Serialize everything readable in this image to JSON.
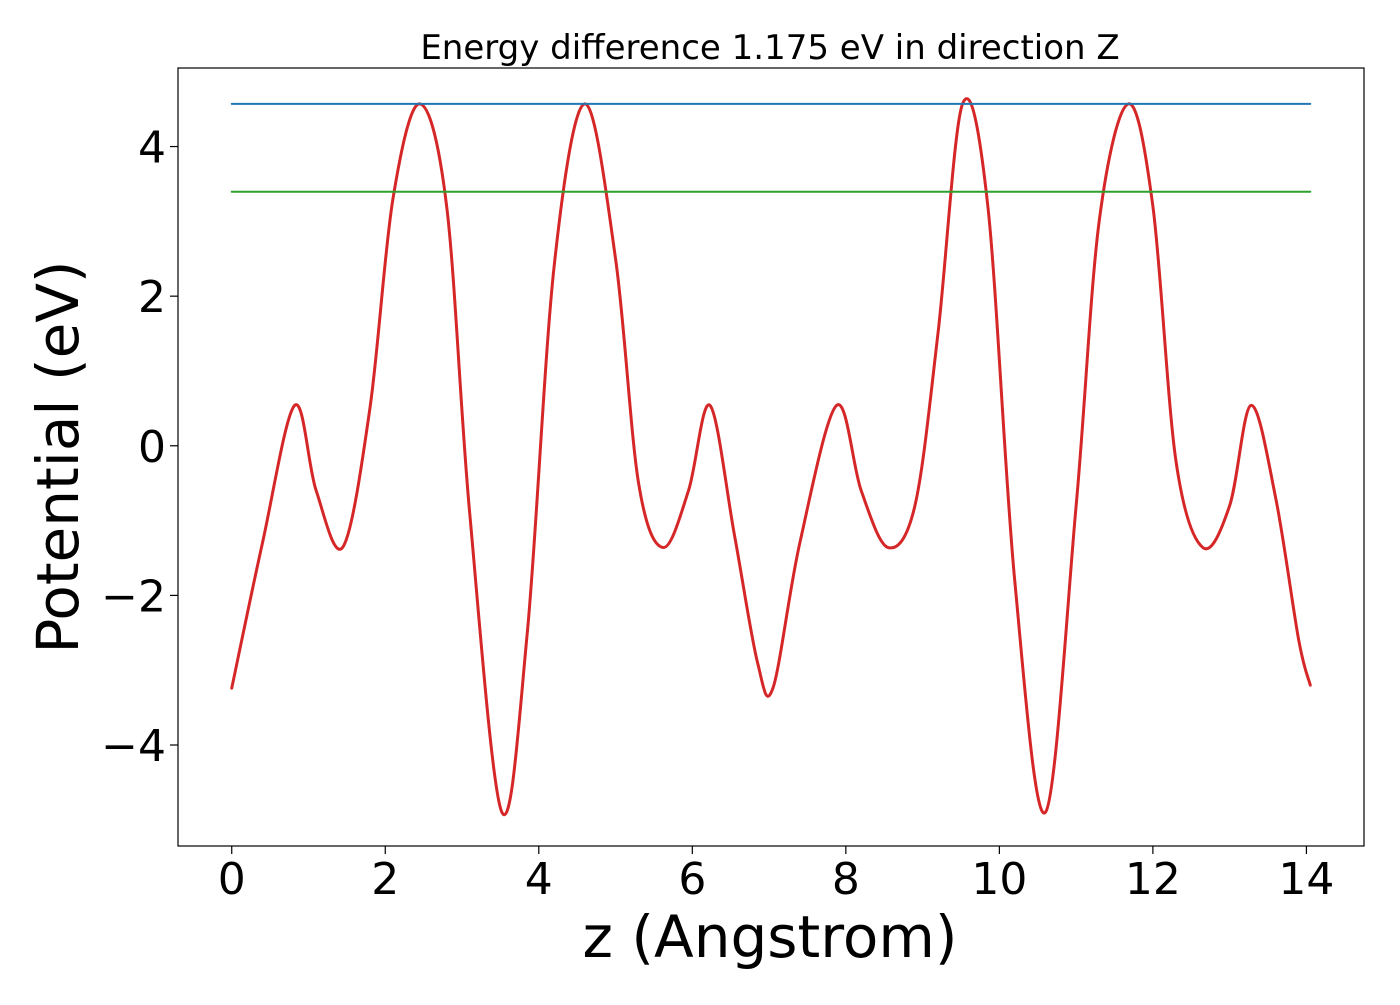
{
  "chart_data": {
    "type": "line",
    "title": "Energy difference 1.175 eV in direction Z",
    "xlabel": "z (Angstrom)",
    "ylabel": "Potential (eV)",
    "xlim": [
      -0.7,
      14.75
    ],
    "ylim": [
      -5.35,
      5.05
    ],
    "xticks": [
      0,
      2,
      4,
      6,
      8,
      10,
      12,
      14
    ],
    "xtick_labels": [
      "0",
      "2",
      "4",
      "6",
      "8",
      "10",
      "12",
      "14"
    ],
    "yticks": [
      -4,
      -2,
      0,
      2,
      4
    ],
    "ytick_labels": [
      "−4",
      "−2",
      "0",
      "2",
      "4"
    ],
    "grid": false,
    "legend": "none",
    "series": [
      {
        "color": "#d62728",
        "style": "line",
        "x": [
          0.0,
          0.4,
          0.82,
          1.1,
          1.45,
          1.8,
          2.1,
          2.45,
          2.8,
          3.1,
          3.52,
          3.85,
          4.2,
          4.6,
          5.0,
          5.3,
          5.62,
          5.95,
          6.23,
          6.55,
          6.85,
          7.05,
          7.4,
          7.88,
          8.2,
          8.55,
          8.9,
          9.2,
          9.52,
          9.85,
          10.2,
          10.6,
          11.0,
          11.3,
          11.68,
          12.0,
          12.3,
          12.65,
          13.0,
          13.28,
          13.6,
          13.9,
          14.05
        ],
        "y": [
          -3.24,
          -1.3,
          0.54,
          -0.6,
          -1.35,
          0.5,
          3.3,
          4.57,
          3.2,
          -0.9,
          -4.9,
          -2.5,
          2.4,
          4.57,
          2.5,
          -0.5,
          -1.36,
          -0.6,
          0.54,
          -1.2,
          -2.9,
          -3.24,
          -1.3,
          0.54,
          -0.6,
          -1.36,
          -0.8,
          1.5,
          4.57,
          3.2,
          -1.8,
          -4.9,
          -0.8,
          3.0,
          4.57,
          3.2,
          -0.2,
          -1.36,
          -0.8,
          0.54,
          -0.7,
          -2.6,
          -3.2
        ]
      },
      {
        "color": "#1f77b4",
        "style": "line",
        "x": [
          0.0,
          14.05
        ],
        "y": [
          4.57,
          4.57
        ]
      },
      {
        "color": "#2ca02c",
        "style": "line",
        "x": [
          0.0,
          14.05
        ],
        "y": [
          3.395,
          3.395
        ]
      }
    ]
  }
}
